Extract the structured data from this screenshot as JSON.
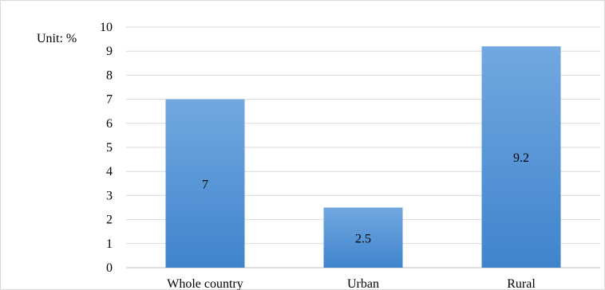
{
  "chart_data": {
    "type": "bar",
    "unit_label": "Unit: %",
    "categories": [
      "Whole country",
      "Urban",
      "Rural"
    ],
    "values": [
      7,
      2.5,
      9.2
    ],
    "data_labels": [
      "7",
      "2.5",
      "9.2"
    ],
    "ylim": [
      0,
      10
    ],
    "yticks": [
      0,
      1,
      2,
      3,
      4,
      5,
      6,
      7,
      8,
      9,
      10
    ],
    "grid": true,
    "legend": "none",
    "colors": {
      "bar_top": "#72a8e0",
      "bar_bottom": "#3f84cc",
      "grid": "#d9d9d9",
      "axis": "#bfbfbf"
    }
  }
}
